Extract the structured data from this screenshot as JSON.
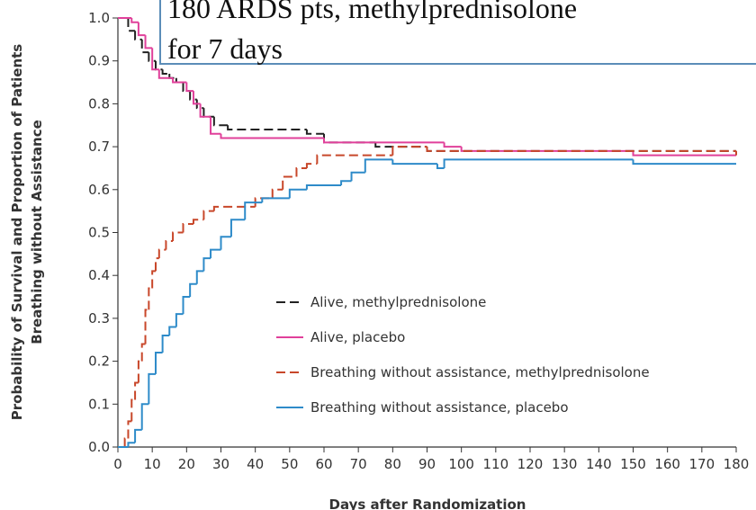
{
  "chart_data": {
    "type": "step",
    "annotation": [
      "180 ARDS pts, methylprednisolone",
      "for 7 days"
    ],
    "xlabel": "Days after Randomization",
    "ylabel": [
      "Probability of Survival and Proportion of Patients",
      "Breathing without Assistance"
    ],
    "xlim": [
      0,
      180
    ],
    "ylim": [
      0,
      1
    ],
    "xticks": [
      0,
      10,
      20,
      30,
      40,
      50,
      60,
      70,
      80,
      90,
      100,
      110,
      120,
      130,
      140,
      150,
      160,
      170,
      180
    ],
    "yticks": [
      {
        "value": 0,
        "label": "0.0"
      },
      0.1,
      0.2,
      0.3,
      0.4,
      0.5,
      0.6,
      0.7,
      0.8,
      0.9,
      {
        "value": 1,
        "label": "1.0"
      }
    ],
    "series": [
      {
        "name": "Alive, methylprednisolone",
        "color": "#222222",
        "dash": true,
        "x": [
          0,
          3,
          5,
          7,
          9,
          11,
          13,
          15,
          17,
          19,
          21,
          23,
          25,
          28,
          32,
          55,
          60,
          75,
          90,
          180
        ],
        "values": [
          1.0,
          0.97,
          0.95,
          0.92,
          0.9,
          0.88,
          0.87,
          0.86,
          0.85,
          0.83,
          0.81,
          0.79,
          0.77,
          0.75,
          0.74,
          0.73,
          0.71,
          0.7,
          0.69,
          0.685
        ]
      },
      {
        "name": "Alive, placebo",
        "color": "#e0409a",
        "dash": false,
        "x": [
          0,
          4,
          6,
          8,
          10,
          12,
          16,
          20,
          22,
          24,
          27,
          30,
          60,
          95,
          100,
          150,
          180
        ],
        "values": [
          1.0,
          0.99,
          0.96,
          0.93,
          0.88,
          0.86,
          0.85,
          0.83,
          0.8,
          0.77,
          0.73,
          0.72,
          0.71,
          0.7,
          0.69,
          0.68,
          0.68
        ]
      },
      {
        "name": "Breathing without assistance, methylprednisolone",
        "color": "#c8472a",
        "dash": true,
        "x": [
          0,
          2,
          3,
          4,
          5,
          6,
          7,
          8,
          9,
          10,
          11,
          12,
          14,
          16,
          19,
          22,
          25,
          28,
          40,
          45,
          48,
          52,
          55,
          58,
          80,
          90,
          180
        ],
        "values": [
          0,
          0.02,
          0.06,
          0.11,
          0.15,
          0.2,
          0.24,
          0.32,
          0.37,
          0.41,
          0.44,
          0.46,
          0.48,
          0.5,
          0.52,
          0.53,
          0.55,
          0.56,
          0.58,
          0.6,
          0.63,
          0.65,
          0.66,
          0.68,
          0.7,
          0.69,
          0.68
        ]
      },
      {
        "name": "Breathing without assistance, placebo",
        "color": "#2e8bc9",
        "dash": false,
        "x": [
          0,
          3,
          5,
          7,
          9,
          11,
          13,
          15,
          17,
          19,
          21,
          23,
          25,
          27,
          30,
          33,
          37,
          42,
          50,
          55,
          65,
          68,
          72,
          80,
          93,
          95,
          150,
          180
        ],
        "values": [
          0,
          0.01,
          0.04,
          0.1,
          0.17,
          0.22,
          0.26,
          0.28,
          0.31,
          0.35,
          0.38,
          0.41,
          0.44,
          0.46,
          0.49,
          0.53,
          0.57,
          0.58,
          0.6,
          0.61,
          0.62,
          0.64,
          0.67,
          0.66,
          0.65,
          0.67,
          0.66,
          0.66
        ]
      }
    ]
  }
}
